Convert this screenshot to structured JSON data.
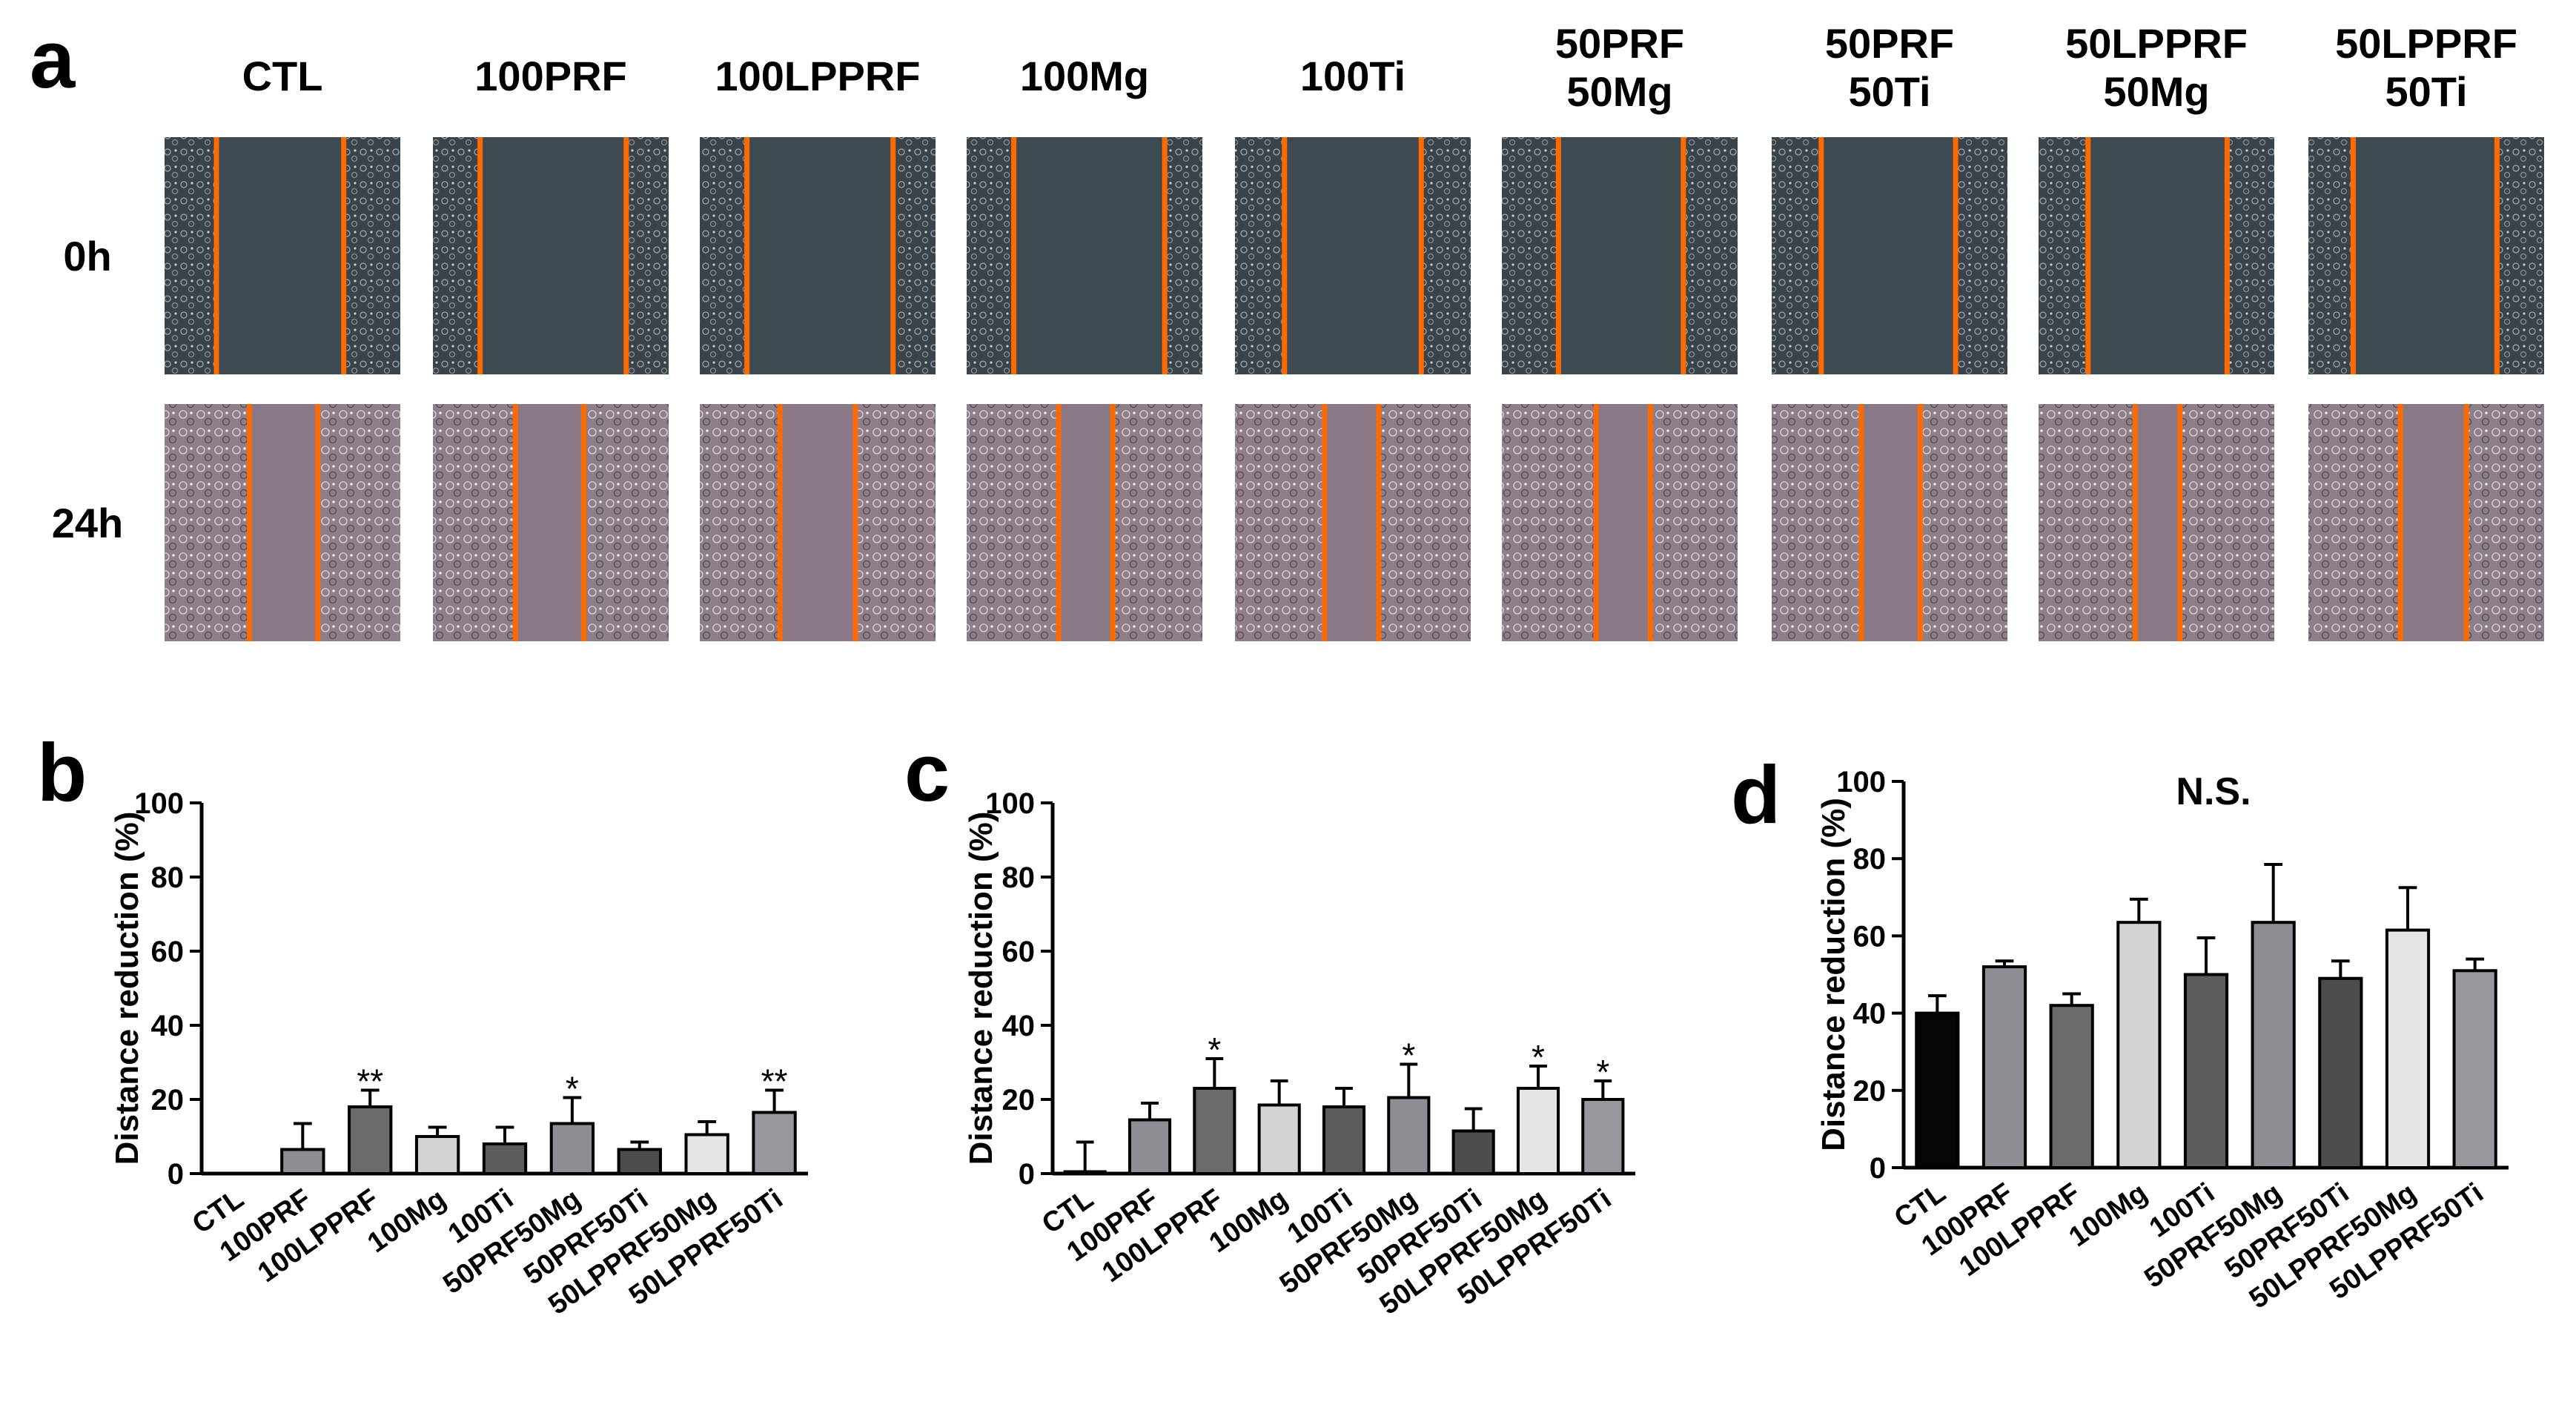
{
  "panel_a": {
    "letter": "a",
    "columns": [
      "CTL",
      "100PRF",
      "100LPPRF",
      "100Mg",
      "100Ti",
      [
        "50PRF",
        "50Mg"
      ],
      [
        "50PRF",
        "50Ti"
      ],
      [
        "50LPPRF",
        "50Mg"
      ],
      [
        "50LPPRF",
        "50Ti"
      ]
    ],
    "rows": [
      "0h",
      "24h"
    ],
    "row_tints": [
      "#3f4a50",
      "#a58fa0"
    ]
  },
  "colors": {
    "marker": "#ff6a00",
    "bars": [
      "#050505",
      "#8d8d94",
      "#6b6b6e",
      "#d3d3d3",
      "#5c5c5e",
      "#8d8d94",
      "#4d4d4f",
      "#e5e5e5",
      "#97979d"
    ]
  },
  "chart_data": [
    {
      "panel": "b",
      "type": "bar",
      "title": "",
      "ylabel": "Distance reduction (%)",
      "ylim": [
        0,
        100
      ],
      "yticks": [
        "0",
        "20",
        "40",
        "60",
        "80",
        "100"
      ],
      "categories": [
        "CTL",
        "100PRF",
        "100LPPRF",
        "100Mg",
        "100Ti",
        "50PRF50Mg",
        "50PRF50Ti",
        "50LPPRF50Mg",
        "50LPPRF50Ti"
      ],
      "values": [
        0,
        6.5,
        18,
        10,
        8,
        13.5,
        6.5,
        10.5,
        16.5
      ],
      "errors": [
        0,
        7,
        4.5,
        2.5,
        4.5,
        7,
        2,
        3.5,
        6
      ],
      "significance": [
        "",
        "",
        "**",
        "",
        "",
        "*",
        "",
        "",
        "**"
      ]
    },
    {
      "panel": "c",
      "type": "bar",
      "title": "",
      "ylabel": "Distance reduction (%)",
      "ylim": [
        0,
        100
      ],
      "yticks": [
        "0",
        "20",
        "40",
        "60",
        "80",
        "100"
      ],
      "categories": [
        "CTL",
        "100PRF",
        "100LPPRF",
        "100Mg",
        "100Ti",
        "50PRF50Mg",
        "50PRF50Ti",
        "50LPPRF50Mg",
        "50LPPRF50Ti"
      ],
      "values": [
        0.5,
        14.5,
        23,
        18.5,
        18,
        20.5,
        11.5,
        23,
        20
      ],
      "errors": [
        8,
        4.5,
        8,
        6.5,
        5,
        9,
        6,
        6,
        5
      ],
      "significance": [
        "",
        "",
        "*",
        "",
        "",
        "*",
        "",
        "*",
        "*"
      ]
    },
    {
      "panel": "d",
      "type": "bar",
      "title": "N.S.",
      "ylabel": "Distance reduction (%)",
      "ylim": [
        0,
        100
      ],
      "yticks": [
        "0",
        "20",
        "40",
        "60",
        "80",
        "100"
      ],
      "categories": [
        "CTL",
        "100PRF",
        "100LPPRF",
        "100Mg",
        "100Ti",
        "50PRF50Mg",
        "50PRF50Ti",
        "50LPPRF50Mg",
        "50LPPRF50Ti"
      ],
      "values": [
        40,
        52,
        42,
        63.5,
        50,
        63.5,
        49,
        61.5,
        51
      ],
      "errors": [
        4.5,
        1.5,
        3,
        6,
        9.5,
        15,
        4.5,
        11,
        3
      ],
      "significance": [
        "",
        "",
        "",
        "",
        "",
        "",
        "",
        "",
        ""
      ]
    }
  ]
}
